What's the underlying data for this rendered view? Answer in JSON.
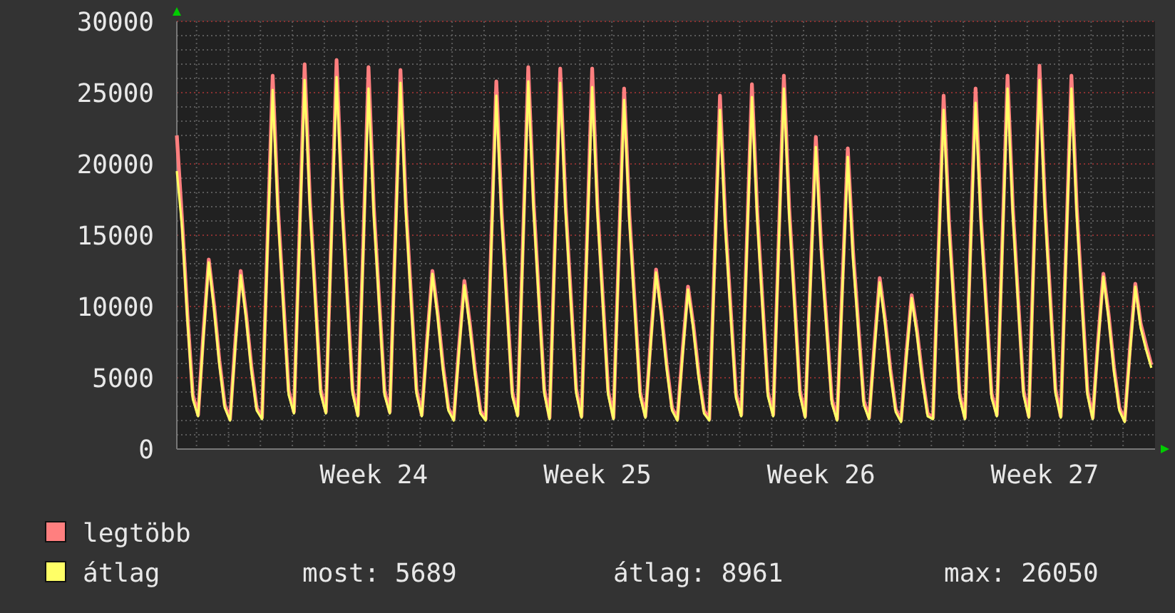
{
  "chart_data": {
    "type": "line",
    "categories": [
      null,
      null,
      null,
      null,
      null,
      null,
      null,
      null,
      null,
      null,
      null,
      null,
      null,
      null,
      null,
      null,
      null,
      null,
      null,
      null,
      null,
      null,
      null,
      null,
      null,
      null,
      null,
      null,
      null,
      null,
      null,
      null,
      null,
      null,
      null,
      null,
      null,
      "Week 24",
      null,
      null,
      null,
      null,
      null,
      null,
      null,
      null,
      null,
      null,
      null,
      null,
      null,
      null,
      null,
      null,
      null,
      null,
      null,
      null,
      null,
      null,
      null,
      null,
      null,
      null,
      null,
      null,
      null,
      null,
      null,
      null,
      null,
      null,
      null,
      null,
      null,
      null,
      null,
      null,
      null,
      "Week 25",
      null,
      null,
      null,
      null,
      null,
      null,
      null,
      null,
      null,
      null,
      null,
      null,
      null,
      null,
      null,
      null,
      null,
      null,
      null,
      null,
      null,
      null,
      null,
      null,
      null,
      null,
      null,
      null,
      null,
      null,
      null,
      null,
      null,
      null,
      null,
      null,
      null,
      null,
      null,
      null,
      null,
      "Week 26",
      null,
      null,
      null,
      null,
      null,
      null,
      null,
      null,
      null,
      null,
      null,
      null,
      null,
      null,
      null,
      null,
      null,
      null,
      null,
      null,
      null,
      null,
      null,
      null,
      null,
      null,
      null,
      null,
      null,
      null,
      null,
      null,
      null,
      null,
      null,
      null,
      null,
      null,
      null,
      null,
      null,
      "Week 27",
      null,
      null,
      null,
      null,
      null,
      null,
      null,
      null,
      null,
      null,
      null,
      null,
      null,
      null,
      null,
      null,
      null,
      null,
      null,
      null
    ],
    "series": [
      {
        "name": "legtöbb",
        "color": "#ff7f7f",
        "values": [
          22000,
          16000,
          9400,
          3800,
          2400,
          8200,
          13300,
          10100,
          6200,
          3100,
          2100,
          7600,
          12500,
          9500,
          5800,
          2900,
          2200,
          14300,
          26200,
          16900,
          10500,
          4100,
          2600,
          14700,
          27000,
          17400,
          10800,
          4200,
          2600,
          14900,
          27300,
          17600,
          10900,
          4200,
          2400,
          14300,
          26800,
          16900,
          10500,
          4100,
          2600,
          14500,
          26600,
          17200,
          10700,
          4200,
          2400,
          7700,
          12500,
          9500,
          5800,
          2900,
          2100,
          7200,
          11800,
          8900,
          5500,
          2700,
          2100,
          14000,
          25800,
          16600,
          10300,
          4000,
          2400,
          14600,
          26800,
          17300,
          10700,
          4200,
          2200,
          14500,
          26700,
          17200,
          10700,
          4200,
          2300,
          14400,
          26700,
          17000,
          10600,
          4100,
          2200,
          13900,
          25300,
          16400,
          10200,
          4000,
          2300,
          7700,
          12600,
          9600,
          5900,
          2900,
          2100,
          7000,
          11400,
          8700,
          5300,
          2700,
          2100,
          13500,
          24800,
          16000,
          9900,
          3900,
          2400,
          14000,
          25600,
          16600,
          10300,
          4000,
          2400,
          14300,
          26200,
          16900,
          10500,
          4100,
          2300,
          12100,
          21900,
          14300,
          8900,
          3500,
          2100,
          11700,
          21100,
          13800,
          8600,
          3400,
          2200,
          7300,
          12000,
          9100,
          5600,
          2800,
          2000,
          6700,
          10800,
          8300,
          5100,
          2500,
          2200,
          13500,
          24800,
          16000,
          9900,
          3900,
          2200,
          13800,
          25300,
          16300,
          10100,
          3900,
          2400,
          14300,
          26200,
          16900,
          10500,
          4100,
          2300,
          14700,
          26900,
          17400,
          10800,
          4200,
          2300,
          14300,
          26200,
          16900,
          10500,
          4100,
          2200,
          7600,
          12300,
          9400,
          5700,
          2900,
          2000,
          7100,
          11600,
          8800,
          7300,
          5900
        ]
      },
      {
        "name": "átlag",
        "color": "#ffff66",
        "values": [
          19500,
          15500,
          9000,
          3500,
          2300,
          7900,
          13100,
          9800,
          5900,
          2900,
          2000,
          7300,
          12200,
          9200,
          5500,
          2700,
          2100,
          13900,
          25200,
          16400,
          10100,
          3800,
          2500,
          14300,
          25900,
          16900,
          10400,
          3900,
          2500,
          14500,
          26100,
          17100,
          10500,
          3900,
          2300,
          13900,
          25300,
          16400,
          10100,
          3800,
          2500,
          14100,
          25700,
          16700,
          10300,
          3900,
          2300,
          7400,
          12300,
          9200,
          5500,
          2700,
          2000,
          6900,
          11500,
          8600,
          5200,
          2500,
          2000,
          13600,
          24800,
          16100,
          9900,
          3700,
          2300,
          14200,
          25800,
          16800,
          10300,
          3900,
          2100,
          14100,
          25700,
          16700,
          10300,
          3900,
          2200,
          14000,
          25400,
          16500,
          10200,
          3800,
          2100,
          13500,
          24500,
          15900,
          9800,
          3700,
          2200,
          7400,
          12400,
          9300,
          5600,
          2700,
          2000,
          6700,
          11200,
          8400,
          5000,
          2500,
          2000,
          13100,
          23800,
          15500,
          9500,
          3600,
          2300,
          13600,
          24700,
          16100,
          9900,
          3700,
          2300,
          13900,
          25300,
          16400,
          10100,
          3800,
          2200,
          11700,
          21200,
          13800,
          8500,
          3200,
          2000,
          11300,
          20500,
          13300,
          8200,
          3100,
          2100,
          7000,
          11700,
          8800,
          5300,
          2600,
          1900,
          6400,
          10600,
          8000,
          4800,
          2300,
          2100,
          13100,
          23800,
          15500,
          9500,
          3600,
          2100,
          13400,
          24300,
          15800,
          9700,
          3600,
          2300,
          13900,
          25300,
          16400,
          10100,
          3800,
          2200,
          14300,
          25900,
          16900,
          10400,
          3900,
          2200,
          13900,
          25300,
          16400,
          10100,
          3800,
          2100,
          7300,
          12100,
          9100,
          5400,
          2700,
          1900,
          6800,
          11400,
          8500,
          7000,
          5700
        ]
      }
    ],
    "ylim": [
      0,
      30000
    ],
    "yticks": [
      0,
      {
        "value": 1000,
        "label": null
      },
      {
        "value": 2000,
        "label": null
      },
      {
        "value": 3000,
        "label": null
      },
      {
        "value": 4000,
        "label": null
      },
      5000,
      {
        "value": 6000,
        "label": null
      },
      {
        "value": 7000,
        "label": null
      },
      {
        "value": 8000,
        "label": null
      },
      {
        "value": 9000,
        "label": null
      },
      10000,
      {
        "value": 11000,
        "label": null
      },
      {
        "value": 12000,
        "label": null
      },
      {
        "value": 13000,
        "label": null
      },
      {
        "value": 14000,
        "label": null
      },
      15000,
      {
        "value": 16000,
        "label": null
      },
      {
        "value": 17000,
        "label": null
      },
      {
        "value": 18000,
        "label": null
      },
      {
        "value": 19000,
        "label": null
      },
      20000,
      {
        "value": 21000,
        "label": null
      },
      {
        "value": 22000,
        "label": null
      },
      {
        "value": 23000,
        "label": null
      },
      {
        "value": 24000,
        "label": null
      },
      25000,
      {
        "value": 26000,
        "label": null
      },
      {
        "value": 27000,
        "label": null
      },
      {
        "value": 28000,
        "label": null
      },
      {
        "value": 29000,
        "label": null
      },
      30000
    ],
    "grid": true,
    "legend": "bottom",
    "marker": "none",
    "line_style": "solid",
    "annotations": [
      "most: 5689",
      "átlag: 8961",
      "max: 26050"
    ]
  }
}
